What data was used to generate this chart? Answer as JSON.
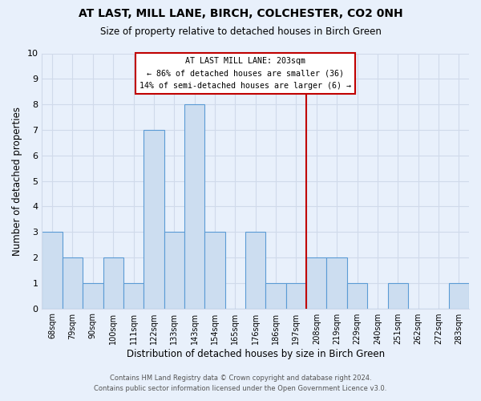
{
  "title": "AT LAST, MILL LANE, BIRCH, COLCHESTER, CO2 0NH",
  "subtitle": "Size of property relative to detached houses in Birch Green",
  "xlabel": "Distribution of detached houses by size in Birch Green",
  "ylabel": "Number of detached properties",
  "bar_labels": [
    "68sqm",
    "79sqm",
    "90sqm",
    "100sqm",
    "111sqm",
    "122sqm",
    "133sqm",
    "143sqm",
    "154sqm",
    "165sqm",
    "176sqm",
    "186sqm",
    "197sqm",
    "208sqm",
    "219sqm",
    "229sqm",
    "240sqm",
    "251sqm",
    "262sqm",
    "272sqm",
    "283sqm"
  ],
  "bar_values": [
    3,
    2,
    1,
    2,
    1,
    7,
    3,
    8,
    3,
    0,
    3,
    1,
    1,
    2,
    2,
    1,
    0,
    1,
    0,
    0,
    1
  ],
  "bar_color": "#ccddf0",
  "bar_edge_color": "#5b9bd5",
  "ylim": [
    0,
    10
  ],
  "yticks": [
    0,
    1,
    2,
    3,
    4,
    5,
    6,
    7,
    8,
    9,
    10
  ],
  "vline_x": 12.5,
  "vline_color": "#c00000",
  "annotation_title": "AT LAST MILL LANE: 203sqm",
  "annotation_line1": "← 86% of detached houses are smaller (36)",
  "annotation_line2": "14% of semi-detached houses are larger (6) →",
  "footer_line1": "Contains HM Land Registry data © Crown copyright and database right 2024.",
  "footer_line2": "Contains public sector information licensed under the Open Government Licence v3.0.",
  "bg_color": "#e8f0fb",
  "grid_color": "#d0daea"
}
